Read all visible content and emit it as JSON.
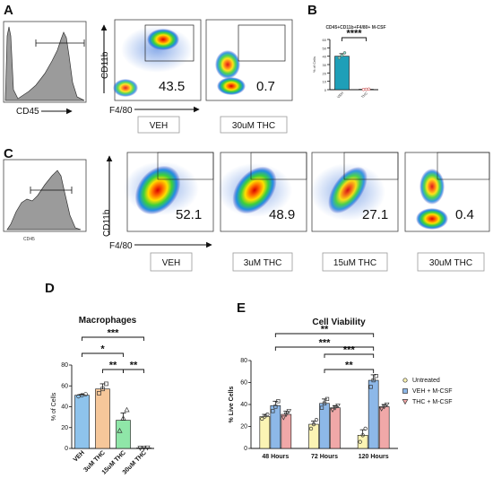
{
  "panels": {
    "A": "A",
    "B": "B",
    "C": "C",
    "D": "D",
    "E": "E"
  },
  "flow_a": {
    "hist_xlabel": "CD45",
    "dot_ylabel": "CD11b",
    "dot_xlabel": "F4/80",
    "plots": [
      {
        "value": "43.5",
        "label": "VEH"
      },
      {
        "value": "0.7",
        "label": "30uM THC"
      }
    ]
  },
  "flow_c": {
    "hist_xlabel": "CD45",
    "dot_ylabel": "CD11b",
    "dot_xlabel": "F4/80",
    "plots": [
      {
        "value": "52.1",
        "label": "VEH"
      },
      {
        "value": "48.9",
        "label": "3uM THC"
      },
      {
        "value": "27.1",
        "label": "15uM THC"
      },
      {
        "value": "0.4",
        "label": "30uM THC"
      }
    ]
  },
  "colors": {
    "teal": "#1f9fb8",
    "blue": "#8ec3ec",
    "orange": "#f6c79a",
    "green": "#8fe6a8",
    "yellow": "#fbf4b4",
    "light_blue": "#8db8e8",
    "pink": "#f0a8a8"
  },
  "chart_data": [
    {
      "panel": "B",
      "type": "bar",
      "title": "CD45+CD11b+F4/80+ M-CSF",
      "ylabel": "% of Cells",
      "categories": [
        "VEH",
        "THC"
      ],
      "values": [
        40,
        0.5
      ],
      "errors": [
        3,
        0.2
      ],
      "points": [
        [
          38,
          41,
          44
        ],
        [
          0.3,
          0.5,
          0.7
        ]
      ],
      "ylim": [
        0,
        60
      ],
      "yticks": [
        0,
        10,
        20,
        30,
        40,
        50,
        60
      ],
      "significance": [
        {
          "from": 0,
          "to": 1,
          "label": "****"
        }
      ]
    },
    {
      "panel": "D",
      "type": "bar",
      "title": "Macrophages",
      "ylabel": "% of Cells",
      "categories": [
        "VEH",
        "3uM THC",
        "15uM THC",
        "30uM THC"
      ],
      "values": [
        51,
        57,
        27,
        0.5
      ],
      "errors": [
        1,
        5,
        7,
        0.2
      ],
      "points": [
        [
          50,
          51,
          52
        ],
        [
          53,
          57,
          62
        ],
        [
          17,
          29,
          37
        ],
        [
          0.3,
          0.5,
          0.7
        ]
      ],
      "ylim": [
        0,
        80
      ],
      "yticks": [
        0,
        20,
        40,
        60,
        80
      ],
      "significance": [
        {
          "from": 0,
          "to": 3,
          "label": "***"
        },
        {
          "from": 0,
          "to": 2,
          "label": "*"
        },
        {
          "from": 1,
          "to": 2,
          "label": "**"
        },
        {
          "from": 2,
          "to": 3,
          "label": "**"
        }
      ]
    },
    {
      "panel": "E",
      "type": "bar",
      "title": "Cell Viability",
      "ylabel": "% Live Cells",
      "categories": [
        "48 Hours",
        "72 Hours",
        "120 Hours"
      ],
      "series": [
        {
          "name": "Untreated",
          "values": [
            29,
            22,
            12
          ],
          "errors": [
            2,
            3,
            5
          ],
          "points": [
            [
              27,
              29,
              31
            ],
            [
              18,
              22,
              26
            ],
            [
              6,
              12,
              18
            ]
          ]
        },
        {
          "name": "VEH + M-CSF",
          "values": [
            39,
            41,
            62
          ],
          "errors": [
            4,
            4,
            5
          ],
          "points": [
            [
              34,
              38,
              43
            ],
            [
              37,
              41,
              45
            ],
            [
              56,
              62,
              66
            ]
          ]
        },
        {
          "name": "THC + M-CSF",
          "values": [
            31,
            37,
            38
          ],
          "errors": [
            3,
            2,
            2
          ],
          "points": [
            [
              28,
              31,
              34
            ],
            [
              35,
              37,
              39
            ],
            [
              36,
              38,
              40
            ]
          ]
        }
      ],
      "ylim": [
        0,
        80
      ],
      "yticks": [
        0,
        20,
        40,
        60,
        80
      ],
      "significance": [
        {
          "from": [
            0,
            1
          ],
          "to": [
            2,
            1
          ],
          "label": "**"
        },
        {
          "from": [
            0,
            1
          ],
          "to": [
            2,
            1
          ],
          "label": "***"
        },
        {
          "from": [
            1,
            1
          ],
          "to": [
            2,
            1
          ],
          "label": "***"
        },
        {
          "from": [
            1,
            1
          ],
          "to": [
            2,
            1
          ],
          "label": "**"
        }
      ],
      "legend": "right"
    }
  ]
}
